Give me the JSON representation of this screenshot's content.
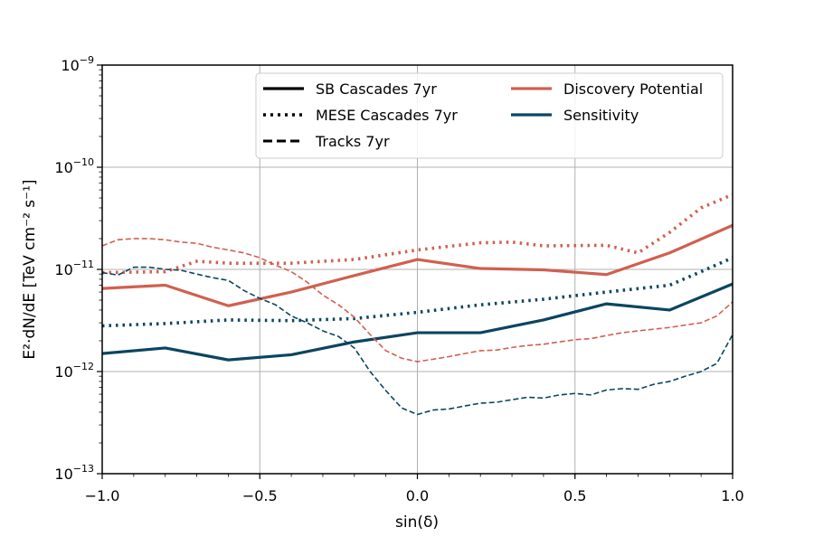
{
  "chart_data": {
    "type": "line",
    "xlabel": "sin(δ)",
    "ylabel": "E²·dN/dE [TeV cm⁻² s⁻¹]",
    "xlim": [
      -1.0,
      1.0
    ],
    "ylim": [
      1e-13,
      1e-09
    ],
    "yscale": "log",
    "grid": true,
    "legend_position": "top-right",
    "x_ticks": [
      {
        "value": -1.0,
        "label": "−1.0"
      },
      {
        "value": -0.5,
        "label": "−0.5"
      },
      {
        "value": 0.0,
        "label": "0.0"
      },
      {
        "value": 0.5,
        "label": "0.5"
      },
      {
        "value": 1.0,
        "label": "1.0"
      }
    ],
    "y_ticks": [
      {
        "value": 1e-13,
        "base": "10",
        "exp": "−13"
      },
      {
        "value": 1e-12,
        "base": "10",
        "exp": "−12"
      },
      {
        "value": 1e-11,
        "base": "10",
        "exp": "−11"
      },
      {
        "value": 1e-10,
        "base": "10",
        "exp": "−10"
      },
      {
        "value": 1e-09,
        "base": "10",
        "exp": "−9"
      }
    ],
    "colors": {
      "discovery": "#d0604f",
      "sensitivity": "#0b4561"
    },
    "legend": [
      {
        "label": "SB Cascades 7yr",
        "style": "solid",
        "color": "#000000"
      },
      {
        "label": "MESE Cascades 7yr",
        "style": "dotted",
        "color": "#000000"
      },
      {
        "label": "Tracks 7yr",
        "style": "dashed",
        "color": "#000000"
      },
      {
        "label": "Discovery Potential",
        "style": "solid",
        "color": "#d0604f"
      },
      {
        "label": "Sensitivity",
        "style": "solid",
        "color": "#0b4561"
      }
    ],
    "series": [
      {
        "sample": "SB Cascades 7yr",
        "kind": "Discovery Potential",
        "style": "solid",
        "color": "#d0604f",
        "x": [
          -1.0,
          -0.8,
          -0.6,
          -0.4,
          -0.2,
          0.0,
          0.2,
          0.4,
          0.6,
          0.8,
          1.0
        ],
        "y": [
          6.5e-12,
          7e-12,
          4.4e-12,
          6e-12,
          8.7e-12,
          1.25e-11,
          1.02e-11,
          9.9e-12,
          8.9e-12,
          1.45e-11,
          2.7e-11
        ]
      },
      {
        "sample": "SB Cascades 7yr",
        "kind": "Sensitivity",
        "style": "solid",
        "color": "#0b4561",
        "x": [
          -1.0,
          -0.8,
          -0.6,
          -0.4,
          -0.2,
          0.0,
          0.2,
          0.4,
          0.6,
          0.8,
          1.0
        ],
        "y": [
          1.5e-12,
          1.7e-12,
          1.3e-12,
          1.46e-12,
          1.95e-12,
          2.4e-12,
          2.4e-12,
          3.2e-12,
          4.6e-12,
          4e-12,
          7.2e-12
        ]
      },
      {
        "sample": "MESE Cascades 7yr",
        "kind": "Discovery Potential",
        "style": "dotted",
        "color": "#d0604f",
        "x": [
          -1.0,
          -0.8,
          -0.7,
          -0.6,
          -0.4,
          -0.2,
          0.0,
          0.2,
          0.3,
          0.4,
          0.6,
          0.7,
          0.8,
          0.9,
          1.0
        ],
        "y": [
          9.3e-12,
          9.5e-12,
          1.2e-11,
          1.15e-11,
          1.15e-11,
          1.25e-11,
          1.55e-11,
          1.82e-11,
          1.85e-11,
          1.7e-11,
          1.72e-11,
          1.45e-11,
          2.3e-11,
          4e-11,
          5.4e-11
        ]
      },
      {
        "sample": "MESE Cascades 7yr",
        "kind": "Sensitivity",
        "style": "dotted",
        "color": "#0b4561",
        "x": [
          -1.0,
          -0.8,
          -0.6,
          -0.4,
          -0.2,
          0.0,
          0.2,
          0.4,
          0.6,
          0.8,
          0.9,
          1.0
        ],
        "y": [
          2.8e-12,
          2.95e-12,
          3.2e-12,
          3.15e-12,
          3.3e-12,
          3.8e-12,
          4.5e-12,
          5.1e-12,
          6e-12,
          7e-12,
          9.5e-12,
          1.3e-11
        ]
      },
      {
        "sample": "Tracks 7yr",
        "kind": "Discovery Potential",
        "style": "dashed",
        "color": "#d0604f",
        "x": [
          -1.0,
          -0.95,
          -0.9,
          -0.85,
          -0.8,
          -0.75,
          -0.7,
          -0.65,
          -0.6,
          -0.55,
          -0.5,
          -0.45,
          -0.4,
          -0.35,
          -0.3,
          -0.25,
          -0.2,
          -0.15,
          -0.1,
          -0.05,
          0.0,
          0.05,
          0.1,
          0.15,
          0.2,
          0.25,
          0.3,
          0.35,
          0.4,
          0.45,
          0.5,
          0.55,
          0.6,
          0.65,
          0.7,
          0.75,
          0.8,
          0.85,
          0.9,
          0.95,
          1.0
        ],
        "y": [
          1.7e-11,
          1.95e-11,
          2e-11,
          2e-11,
          1.95e-11,
          1.85e-11,
          1.8e-11,
          1.65e-11,
          1.55e-11,
          1.45e-11,
          1.3e-11,
          1.1e-11,
          9.5e-12,
          7.5e-12,
          5.6e-12,
          4.5e-12,
          3.4e-12,
          2.3e-12,
          1.6e-12,
          1.35e-12,
          1.25e-12,
          1.32e-12,
          1.4e-12,
          1.5e-12,
          1.6e-12,
          1.62e-12,
          1.72e-12,
          1.8e-12,
          1.85e-12,
          1.95e-12,
          2.05e-12,
          2.1e-12,
          2.25e-12,
          2.4e-12,
          2.5e-12,
          2.6e-12,
          2.7e-12,
          2.85e-12,
          3e-12,
          3.5e-12,
          4.8e-12
        ]
      },
      {
        "sample": "Tracks 7yr",
        "kind": "Sensitivity",
        "style": "dashed",
        "color": "#0b4561",
        "x": [
          -1.0,
          -0.95,
          -0.9,
          -0.85,
          -0.8,
          -0.75,
          -0.7,
          -0.65,
          -0.6,
          -0.55,
          -0.5,
          -0.45,
          -0.4,
          -0.35,
          -0.3,
          -0.25,
          -0.2,
          -0.15,
          -0.1,
          -0.05,
          0.0,
          0.05,
          0.1,
          0.15,
          0.2,
          0.25,
          0.3,
          0.35,
          0.4,
          0.45,
          0.5,
          0.55,
          0.6,
          0.65,
          0.7,
          0.75,
          0.8,
          0.85,
          0.9,
          0.95,
          1.0
        ],
        "y": [
          9.3e-12,
          8.8e-12,
          1.05e-11,
          1.05e-11,
          1e-11,
          9.8e-12,
          9e-12,
          8.3e-12,
          7.8e-12,
          6.2e-12,
          5.2e-12,
          4.5e-12,
          3.5e-12,
          3e-12,
          2.5e-12,
          2.2e-12,
          1.7e-12,
          1e-12,
          6.5e-13,
          4.4e-13,
          3.8e-13,
          4.2e-13,
          4.3e-13,
          4.6e-13,
          4.9e-13,
          5e-13,
          5.3e-13,
          5.6e-13,
          5.5e-13,
          5.9e-13,
          6.1e-13,
          5.9e-13,
          6.6e-13,
          6.8e-13,
          6.7e-13,
          7.5e-13,
          8e-13,
          9e-13,
          1e-12,
          1.2e-12,
          2.3e-12
        ]
      }
    ]
  }
}
